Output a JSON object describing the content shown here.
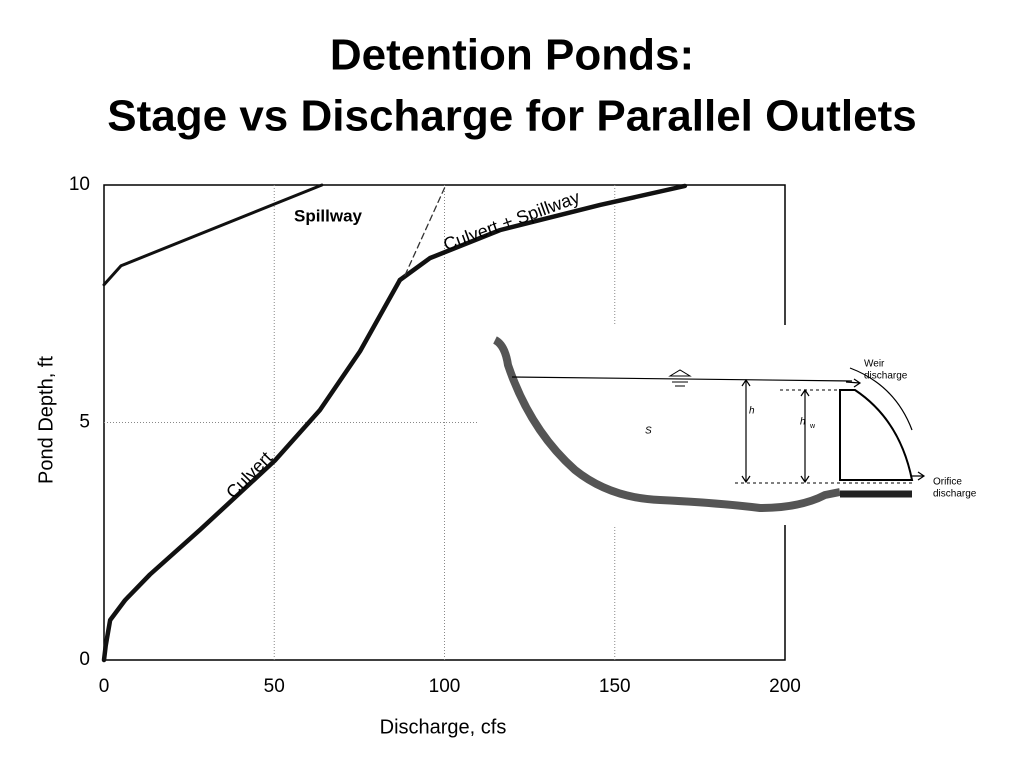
{
  "chart_data": {
    "type": "line",
    "title": "Detention Ponds:",
    "subtitle": "Stage vs Discharge for Parallel Outlets",
    "x_label": "Discharge, cfs",
    "y_label": "Pond Depth, ft",
    "xlim": [
      0,
      200
    ],
    "ylim": [
      0,
      10
    ],
    "xticks": [
      0,
      50,
      100,
      150,
      200
    ],
    "yticks": [
      0,
      5,
      10
    ],
    "grid": true,
    "series": [
      {
        "name": "Spillway",
        "color": "#111111",
        "x": [
          0,
          5,
          64
        ],
        "values": [
          7.9,
          8.3,
          10
        ]
      },
      {
        "name": "Culvert",
        "color": "#111111",
        "x": [
          0,
          0.5,
          1.8,
          6.2,
          13.5,
          28.2,
          50.2,
          63.4,
          75.2,
          86.9
        ],
        "values": [
          0,
          0.3,
          0.84,
          1.26,
          1.8,
          2.74,
          4.2,
          5.26,
          6.5,
          8.0
        ]
      },
      {
        "name": "Culvert + Spillway",
        "color": "#111111",
        "x": [
          86.9,
          95.7,
          116.3,
          145.7,
          170.6
        ],
        "values": [
          8.0,
          8.46,
          9.05,
          9.58,
          9.98
        ]
      },
      {
        "color": "#333333",
        "dash": true,
        "x": [
          88.4,
          100.4
        ],
        "values": [
          8.1,
          10
        ]
      }
    ]
  },
  "diagram": {
    "weir_label": [
      "Weir",
      "discharge"
    ],
    "orifice_label": [
      "Orifice",
      "discharge"
    ],
    "h": "h",
    "hw": "h",
    "hw_sub": "w",
    "storage": "S"
  }
}
